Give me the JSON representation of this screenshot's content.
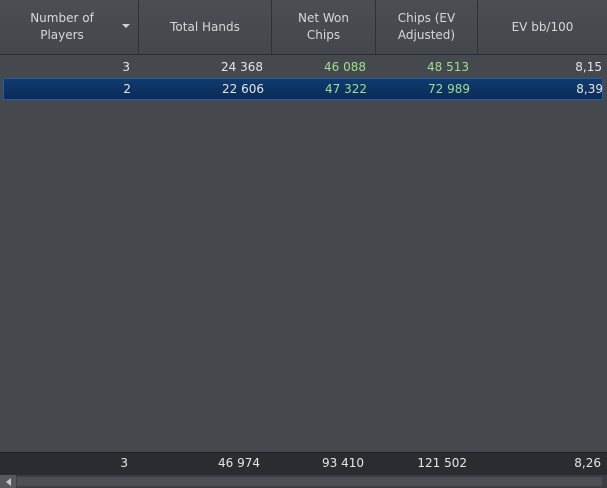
{
  "columns": [
    {
      "label": "Number of Players"
    },
    {
      "label": "Total Hands"
    },
    {
      "label": "Net Won Chips"
    },
    {
      "label": "Chips (EV Adjusted)"
    },
    {
      "label": "EV bb/100"
    }
  ],
  "rows": [
    {
      "players": "3",
      "hands": "24 368",
      "net_won": "46 088",
      "ev_adjusted": "48 513",
      "ev_bb100": "8,15",
      "selected": false
    },
    {
      "players": "2",
      "hands": "22 606",
      "net_won": "47 322",
      "ev_adjusted": "72 989",
      "ev_bb100": "8,39",
      "selected": true
    }
  ],
  "totals": {
    "players": "3",
    "hands": "46 974",
    "net_won": "93 410",
    "ev_adjusted": "121 502",
    "ev_bb100": "8,26"
  },
  "colors": {
    "positive": "#9be38b",
    "selection": "#0b2c58",
    "background": "#45484c"
  },
  "icons": {
    "sort": "sort-descending-icon",
    "scroll_left": "scroll-left-arrow-icon"
  }
}
